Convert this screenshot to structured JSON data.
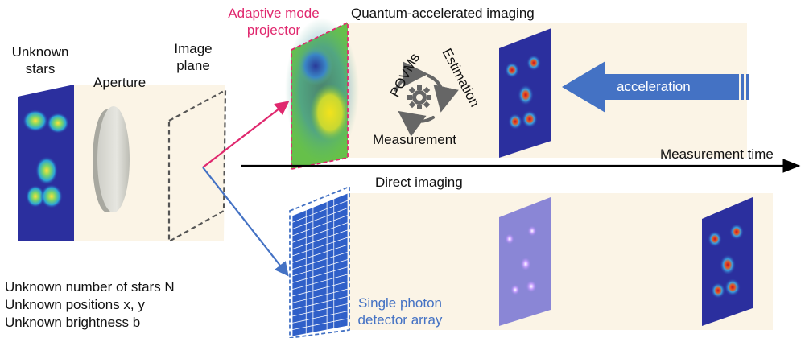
{
  "left_labels": {
    "unknown_stars": [
      "Unknown",
      "stars"
    ],
    "aperture": "Aperture",
    "image_plane": [
      "Image",
      "plane"
    ]
  },
  "unknowns": [
    "Unknown number of stars N",
    "Unknown positions x, y",
    "Unknown brightness b"
  ],
  "top_branch": {
    "projector_label": [
      "Adaptive mode",
      "projector"
    ],
    "title": "Quantum-accelerated imaging",
    "cycle": {
      "povms": "POVMs",
      "estimation": "Estimation",
      "measurement": "Measurement",
      "center": "gear-icon"
    },
    "arrow_label": "acceleration"
  },
  "timeline_label": "Measurement time",
  "bottom_branch": {
    "title": "Direct imaging",
    "detector_label": [
      "Single photon",
      "detector array"
    ]
  },
  "colors": {
    "pink": "#e0286e",
    "blue": "#4472c4",
    "panel": "#fbf4e6",
    "heatmap_bg": "#2b2f9e",
    "arrow": "#4472c4"
  }
}
